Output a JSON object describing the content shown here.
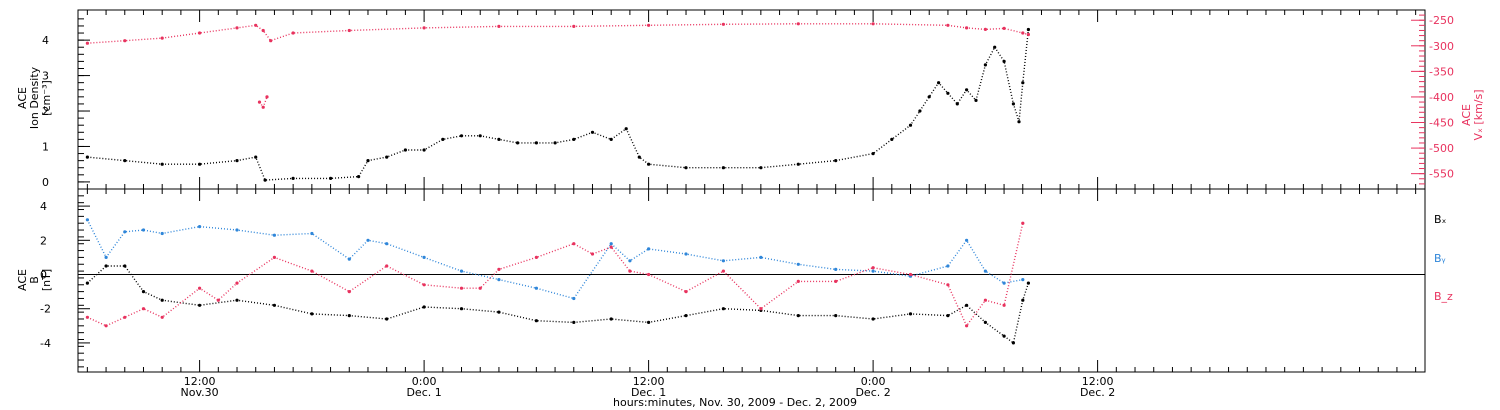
{
  "chart_data": [
    {
      "type": "scatter",
      "ylabel_lines": [
        "ACE",
        "Ion Density",
        "[cm⁻³]"
      ],
      "ylim": [
        -0.2,
        4.85
      ],
      "yticks": [
        0,
        1,
        2,
        3,
        4
      ],
      "xlim_hours": [
        5.5,
        77.5
      ],
      "series": [
        {
          "color": "#000000",
          "axis": "left",
          "x": [
            6,
            8,
            10,
            12,
            14,
            15,
            15.5,
            17,
            19,
            20.5,
            21,
            22,
            23,
            24,
            25,
            26,
            27,
            28,
            29,
            30,
            31,
            32,
            33,
            34,
            34.8,
            35.5,
            36,
            38,
            40,
            42,
            44,
            46,
            48,
            49,
            50,
            50.5,
            51,
            51.5,
            52,
            52.5,
            53,
            53.5,
            54,
            54.5,
            55,
            55.5,
            55.8,
            56,
            56.3
          ],
          "y": [
            0.7,
            0.6,
            0.5,
            0.5,
            0.6,
            0.7,
            0.05,
            0.1,
            0.1,
            0.15,
            0.6,
            0.7,
            0.9,
            0.9,
            1.2,
            1.3,
            1.3,
            1.2,
            1.1,
            1.1,
            1.1,
            1.2,
            1.4,
            1.2,
            1.5,
            0.7,
            0.5,
            0.4,
            0.4,
            0.4,
            0.5,
            0.6,
            0.8,
            1.2,
            1.6,
            2.0,
            2.4,
            2.8,
            2.5,
            2.2,
            2.6,
            2.3,
            3.3,
            3.8,
            3.4,
            2.2,
            1.7,
            2.8,
            4.3
          ]
        },
        {
          "color": "#e8325e",
          "axis": "right",
          "x": [
            6,
            8,
            10,
            12,
            14,
            15,
            15.4,
            15.8,
            17,
            20,
            24,
            28,
            32,
            36,
            40,
            44,
            48,
            52,
            53,
            54,
            55,
            56,
            56.3
          ],
          "y": [
            -295,
            -290,
            -285,
            -275,
            -265,
            -260,
            -270,
            -290,
            -275,
            -270,
            -265,
            -262,
            -262,
            -260,
            -258,
            -257,
            -257,
            -260,
            -265,
            -268,
            -266,
            -275,
            -278
          ]
        },
        {
          "color": "#e8325e",
          "axis": "right",
          "x": [
            15.2,
            15.4,
            15.6
          ],
          "y": [
            -410,
            -420,
            -400
          ]
        }
      ],
      "right_axis": {
        "label_lines": [
          "ACE",
          "Vₓ [km/s]"
        ],
        "ylim": [
          -580,
          -230
        ],
        "yticks": [
          -250,
          -300,
          -350,
          -400,
          -450,
          -500,
          -550
        ]
      },
      "grid": false
    },
    {
      "type": "scatter",
      "ylabel_lines": [
        "ACE",
        "B",
        "[nT]"
      ],
      "ylim": [
        -5.7,
        5.0
      ],
      "yticks": [
        -4,
        -2,
        0,
        2,
        4
      ],
      "xlim_hours": [
        5.5,
        77.5
      ],
      "zero_line": true,
      "series": [
        {
          "name": "Bₓ",
          "color": "#000000",
          "x": [
            6,
            7,
            8,
            9,
            10,
            12,
            14,
            16,
            18,
            20,
            22,
            24,
            26,
            28,
            30,
            32,
            34,
            36,
            38,
            40,
            42,
            44,
            46,
            48,
            50,
            52,
            53,
            54,
            55,
            55.5,
            56,
            56.3
          ],
          "y": [
            -0.5,
            0.5,
            0.5,
            -1.0,
            -1.5,
            -1.8,
            -1.5,
            -1.8,
            -2.3,
            -2.4,
            -2.6,
            -1.9,
            -2.0,
            -2.2,
            -2.7,
            -2.8,
            -2.6,
            -2.8,
            -2.4,
            -2.0,
            -2.1,
            -2.4,
            -2.4,
            -2.6,
            -2.3,
            -2.4,
            -1.8,
            -2.8,
            -3.6,
            -4.0,
            -1.5,
            -0.5
          ]
        },
        {
          "name": "Bᵧ",
          "color": "#2f86d9",
          "x": [
            6,
            7,
            8,
            9,
            10,
            12,
            14,
            16,
            18,
            20,
            21,
            22,
            24,
            26,
            28,
            30,
            32,
            34,
            35,
            36,
            38,
            40,
            42,
            44,
            46,
            48,
            50,
            52,
            53,
            54,
            55,
            56
          ],
          "y": [
            3.2,
            1.0,
            2.5,
            2.6,
            2.4,
            2.8,
            2.6,
            2.3,
            2.4,
            0.9,
            2.0,
            1.8,
            1.0,
            0.2,
            -0.3,
            -0.8,
            -1.4,
            1.8,
            0.8,
            1.5,
            1.2,
            0.8,
            1.0,
            0.6,
            0.3,
            0.2,
            -0.1,
            0.5,
            2.0,
            0.2,
            -0.5,
            -0.3
          ]
        },
        {
          "name": "B_z",
          "color": "#e8325e",
          "x": [
            6,
            7,
            8,
            9,
            10,
            12,
            13,
            14,
            16,
            18,
            20,
            22,
            24,
            26,
            27,
            28,
            30,
            32,
            33,
            34,
            35,
            36,
            38,
            40,
            42,
            44,
            46,
            48,
            50,
            52,
            53,
            54,
            55,
            56
          ],
          "y": [
            -2.5,
            -3.0,
            -2.5,
            -2.0,
            -2.5,
            -0.8,
            -1.5,
            -0.5,
            1.0,
            0.2,
            -1.0,
            0.5,
            -0.6,
            -0.8,
            -0.8,
            0.3,
            1.0,
            1.8,
            1.2,
            1.6,
            0.2,
            0.0,
            -1.0,
            0.2,
            -2.0,
            -0.4,
            -0.4,
            0.4,
            0.0,
            -0.6,
            -3.0,
            -1.5,
            -1.8,
            3.0
          ]
        }
      ],
      "legend_labels": [
        "Bₓ",
        "Bᵧ",
        "B_z"
      ],
      "legend_position": "right",
      "grid": false
    }
  ],
  "xaxis": {
    "ticks": [
      {
        "hour": 12,
        "time": "12:00",
        "date": "Nov.30"
      },
      {
        "hour": 24,
        "time": "0:00",
        "date": "Dec. 1"
      },
      {
        "hour": 36,
        "time": "12:00",
        "date": "Dec. 1"
      },
      {
        "hour": 48,
        "time": "0:00",
        "date": "Dec. 2"
      },
      {
        "hour": 60,
        "time": "12:00",
        "date": "Dec. 2"
      }
    ],
    "label": "hours:minutes, Nov. 30, 2009 - Dec. 2, 2009"
  },
  "colors": {
    "black": "#000000",
    "pink": "#e8325e",
    "blue": "#2f86d9"
  }
}
